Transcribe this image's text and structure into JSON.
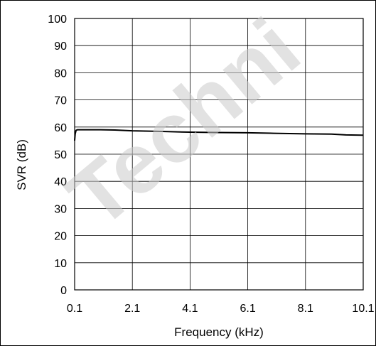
{
  "chart_data": {
    "type": "line",
    "title": "",
    "xlabel": "Frequency (kHz)",
    "ylabel": "SVR (dB)",
    "xlim": [
      0.1,
      10.1
    ],
    "ylim": [
      0,
      100
    ],
    "x_ticks": [
      "0.1",
      "2.1",
      "4.1",
      "6.1",
      "8.1",
      "10.1"
    ],
    "y_ticks": [
      "0",
      "10",
      "20",
      "30",
      "40",
      "50",
      "60",
      "70",
      "80",
      "90",
      "100"
    ],
    "grid": true,
    "series": [
      {
        "x": [
          0.1,
          0.12,
          0.15,
          0.2,
          0.5,
          1.0,
          1.5,
          2.1,
          3.0,
          4.1,
          5.0,
          6.1,
          7.0,
          8.1,
          9.0,
          9.5,
          10.1
        ],
        "y": [
          55,
          57.5,
          58.8,
          59.0,
          59.0,
          59.0,
          58.9,
          58.6,
          58.4,
          58.1,
          58.0,
          57.9,
          57.7,
          57.5,
          57.4,
          57.1,
          57.0
        ]
      }
    ],
    "line_color": "#000000",
    "grid_color": "#000000"
  },
  "watermark": {
    "text": "Techni",
    "color": "#cccccc"
  }
}
